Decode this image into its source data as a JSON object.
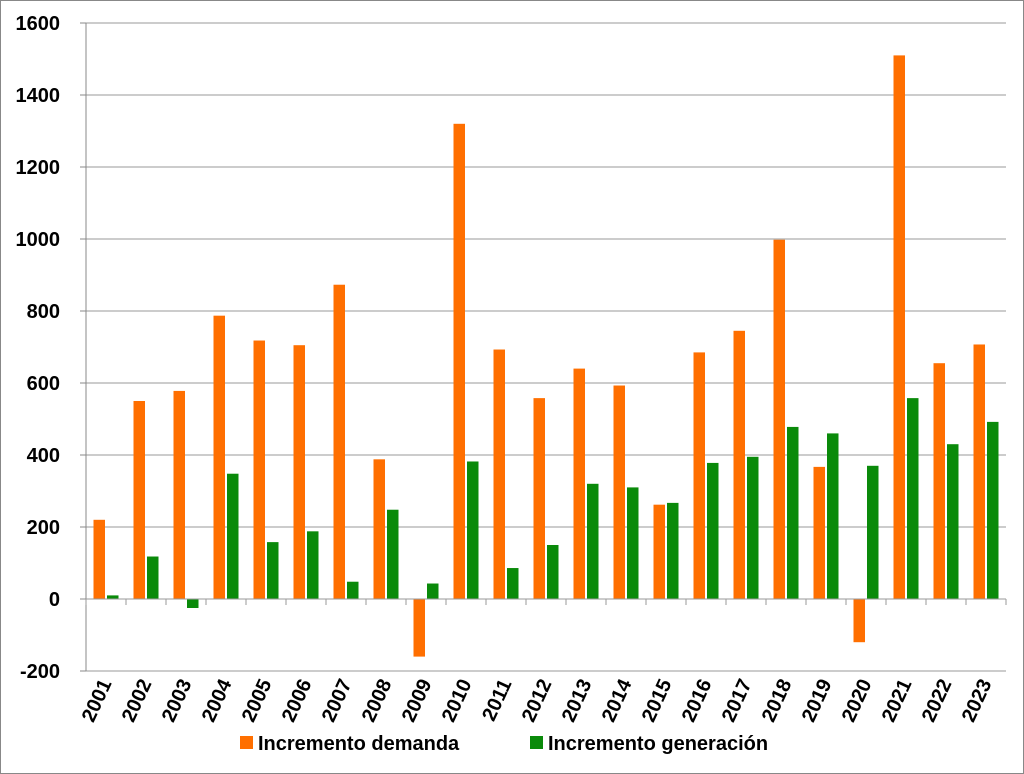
{
  "chart_data": {
    "type": "bar",
    "categories": [
      "2001",
      "2002",
      "2003",
      "2004",
      "2005",
      "2006",
      "2007",
      "2008",
      "2009",
      "2010",
      "2011",
      "2012",
      "2013",
      "2014",
      "2015",
      "2016",
      "2017",
      "2018",
      "2019",
      "2020",
      "2021",
      "2022",
      "2023"
    ],
    "series": [
      {
        "name": "Incremento demanda",
        "color": "#ff6f00",
        "values": [
          220,
          550,
          578,
          787,
          718,
          705,
          873,
          388,
          -160,
          1320,
          693,
          558,
          640,
          593,
          262,
          685,
          745,
          998,
          367,
          -120,
          1510,
          655,
          707
        ]
      },
      {
        "name": "Incremento generación",
        "color": "#0a8a0a",
        "values": [
          10,
          118,
          -25,
          348,
          158,
          188,
          48,
          248,
          43,
          382,
          86,
          150,
          320,
          310,
          267,
          378,
          395,
          478,
          460,
          370,
          558,
          430,
          492
        ]
      }
    ],
    "ylim": [
      -200,
      1600
    ],
    "yticks": [
      -200,
      0,
      200,
      400,
      600,
      800,
      1000,
      1200,
      1400,
      1600
    ],
    "grid": true,
    "legend_position": "bottom",
    "title": "",
    "xlabel": "",
    "ylabel": ""
  }
}
